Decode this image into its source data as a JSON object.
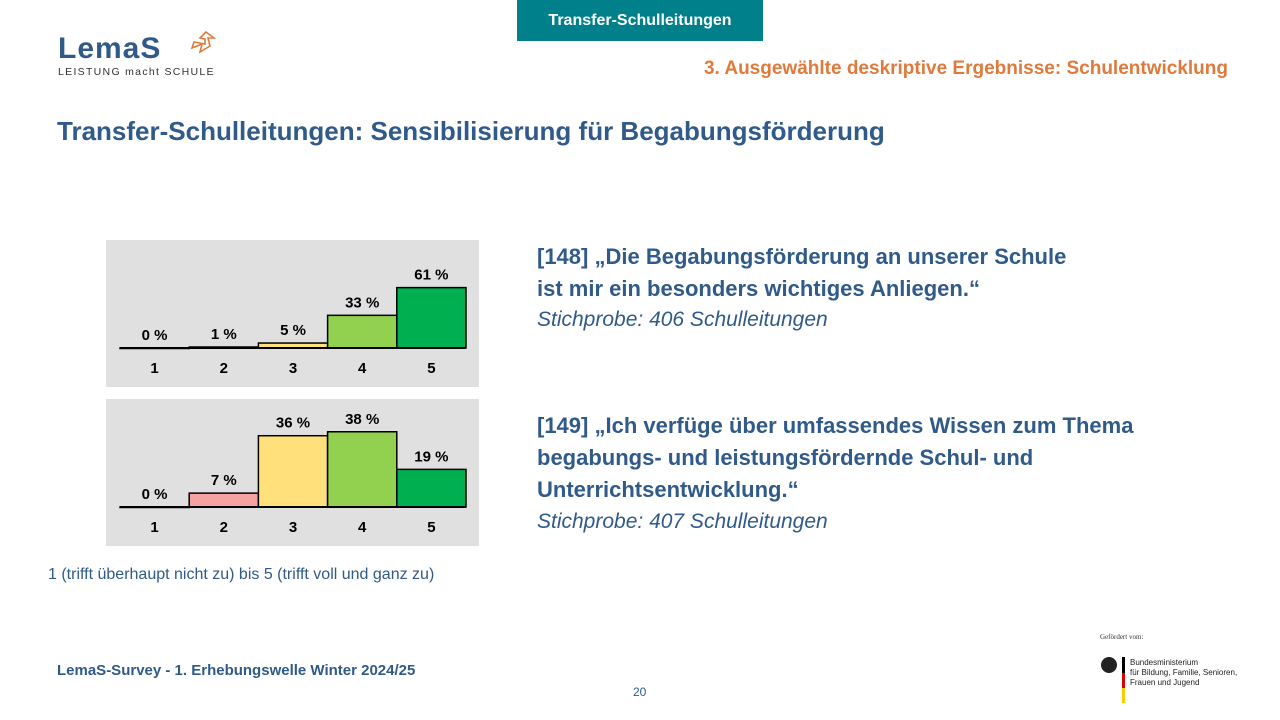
{
  "header": {
    "tab": "Transfer-Schulleitungen",
    "logo_word": "LemaS",
    "logo_tagline": "LEISTUNG macht SCHULE",
    "section": "3. Ausgewählte deskriptive Ergebnisse: Schulentwicklung"
  },
  "title": "Transfer-Schulleitungen: Sensibilisierung für Begabungsförderung",
  "items": [
    {
      "question_line1": "[148] „Die Begabungsförderung an unserer Schule",
      "question_line2": "ist mir ein besonders wichtiges Anliegen.“",
      "question_line3": "",
      "sample": "Stichprobe: 406 Schulleitungen"
    },
    {
      "question_line1": "[149] „Ich verfüge über umfassendes Wissen zum Thema",
      "question_line2": "begabungs- und leistungsfördernde Schul- und",
      "question_line3": "Unterrichtsentwicklung.“",
      "sample": "Stichprobe: 407 Schulleitungen"
    }
  ],
  "scale_note": "1 (trifft überhaupt nicht zu) bis 5 (trifft voll und ganz zu)",
  "footer": "LemaS-Survey  - 1. Erhebungswelle Winter 2024/25",
  "page_number": "20",
  "funding": {
    "label": "Gefördert vom:",
    "ministry_line1": "Bundesministerium",
    "ministry_line2": "für Bildung, Familie, Senioren,",
    "ministry_line3": "Frauen und Jugend"
  },
  "colors": {
    "1": "#e05050",
    "2": "#f4a3a3",
    "3": "#ffe07a",
    "4": "#92d050",
    "5": "#00b050",
    "panel": "#e0e0e0"
  },
  "chart_data": [
    {
      "type": "bar",
      "categories": [
        "1",
        "2",
        "3",
        "4",
        "5"
      ],
      "values": [
        0,
        1,
        5,
        33,
        61
      ],
      "data_labels": [
        "0 %",
        "1 %",
        "5 %",
        "33 %",
        "61 %"
      ],
      "ylim": [
        0,
        100
      ],
      "grid": false
    },
    {
      "type": "bar",
      "categories": [
        "1",
        "2",
        "3",
        "4",
        "5"
      ],
      "values": [
        0,
        7,
        36,
        38,
        19
      ],
      "data_labels": [
        "0 %",
        "7 %",
        "36 %",
        "38 %",
        "19 %"
      ],
      "ylim": [
        0,
        50
      ],
      "grid": false
    }
  ]
}
